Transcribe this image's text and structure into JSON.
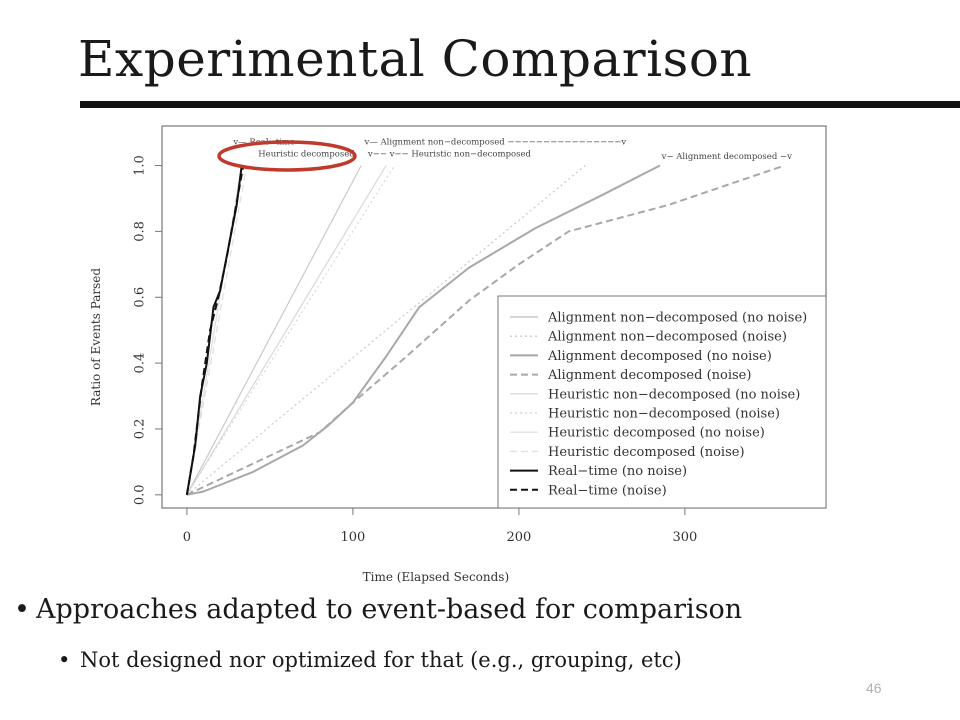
{
  "slide": {
    "title": "Experimental Comparison",
    "bullets": [
      {
        "text": "Approaches adapted to event-based for comparison",
        "level": 1
      },
      {
        "text": "Not designed nor optimized for that (e.g., grouping, etc)",
        "level": 2
      }
    ],
    "page_number": "46",
    "bullet_glyph": "•",
    "highlight_color": "#c0392b"
  },
  "chart_data": {
    "type": "line",
    "xlabel": "Time (Elapsed Seconds)",
    "ylabel": "Ratio of Events Parsed",
    "xlim": [
      -15,
      385
    ],
    "ylim": [
      -0.04,
      1.12
    ],
    "xticks": [
      0,
      100,
      200,
      300
    ],
    "yticks": [
      0.0,
      0.2,
      0.4,
      0.6,
      0.8,
      1.0
    ],
    "grid": false,
    "legend_position": "right",
    "series": [
      {
        "name": "Alignment non−decomposed (no noise)",
        "color": "#c9c9c9",
        "dash": "solid",
        "width": 1.2,
        "x": [
          0,
          105
        ],
        "y": [
          0,
          1.0
        ]
      },
      {
        "name": "Alignment non−decomposed (noise)",
        "color": "#c9c9c9",
        "dash": "dot",
        "width": 1.2,
        "x": [
          0,
          240
        ],
        "y": [
          0,
          1.0
        ]
      },
      {
        "name": "Alignment decomposed (no noise)",
        "color": "#a8a8a8",
        "dash": "solid",
        "width": 2,
        "x": [
          0,
          10,
          40,
          70,
          85,
          100,
          120,
          140,
          170,
          210,
          250,
          285
        ],
        "y": [
          0,
          0.01,
          0.07,
          0.15,
          0.21,
          0.28,
          0.42,
          0.57,
          0.69,
          0.81,
          0.91,
          1.0
        ]
      },
      {
        "name": "Alignment decomposed (noise)",
        "color": "#a8a8a8",
        "dash": "dash",
        "width": 2,
        "x": [
          0,
          80,
          100,
          130,
          170,
          200,
          230,
          290,
          360
        ],
        "y": [
          0,
          0.19,
          0.28,
          0.41,
          0.59,
          0.7,
          0.8,
          0.88,
          1.0
        ]
      },
      {
        "name": "Heuristic non−decomposed (no noise)",
        "color": "#d8d8d8",
        "dash": "solid",
        "width": 1.2,
        "x": [
          0,
          120
        ],
        "y": [
          0,
          1.0
        ]
      },
      {
        "name": "Heuristic non−decomposed (noise)",
        "color": "#d8d8d8",
        "dash": "dot",
        "width": 1.2,
        "x": [
          0,
          125
        ],
        "y": [
          0,
          1.0
        ]
      },
      {
        "name": "Heuristic decomposed (no noise)",
        "color": "#e0e0e0",
        "dash": "solid",
        "width": 1.2,
        "x": [
          0,
          33
        ],
        "y": [
          0,
          1.0
        ]
      },
      {
        "name": "Heuristic decomposed (noise)",
        "color": "#e0e0e0",
        "dash": "dash",
        "width": 1.2,
        "x": [
          0,
          36
        ],
        "y": [
          0,
          1.0
        ]
      },
      {
        "name": "Real−time (no noise)",
        "color": "#111111",
        "dash": "solid",
        "width": 2,
        "x": [
          0,
          5,
          8,
          12,
          16,
          20,
          25,
          30,
          33
        ],
        "y": [
          0,
          0.15,
          0.3,
          0.4,
          0.57,
          0.62,
          0.75,
          0.88,
          1.0
        ]
      },
      {
        "name": "Real−time (noise)",
        "color": "#111111",
        "dash": "dash",
        "width": 2,
        "x": [
          0,
          4,
          9,
          14,
          19,
          24,
          29,
          34
        ],
        "y": [
          0,
          0.12,
          0.33,
          0.5,
          0.6,
          0.72,
          0.86,
          1.0
        ]
      }
    ],
    "annotations": [
      {
        "text": "v— Real−time",
        "x": 28,
        "y": 1.064
      },
      {
        "text": "Heuristic decomposed",
        "x": 43,
        "y": 1.027
      },
      {
        "text": "v— Alignment non−decomposed −−−−−−−−−−−−−−−−v",
        "x": 107,
        "y": 1.064
      },
      {
        "text": "v−− v−− Heuristic non−decomposed",
        "x": 109,
        "y": 1.027
      },
      {
        "text": "v− Alignment decomposed −v",
        "x": 286,
        "y": 1.02
      }
    ]
  }
}
